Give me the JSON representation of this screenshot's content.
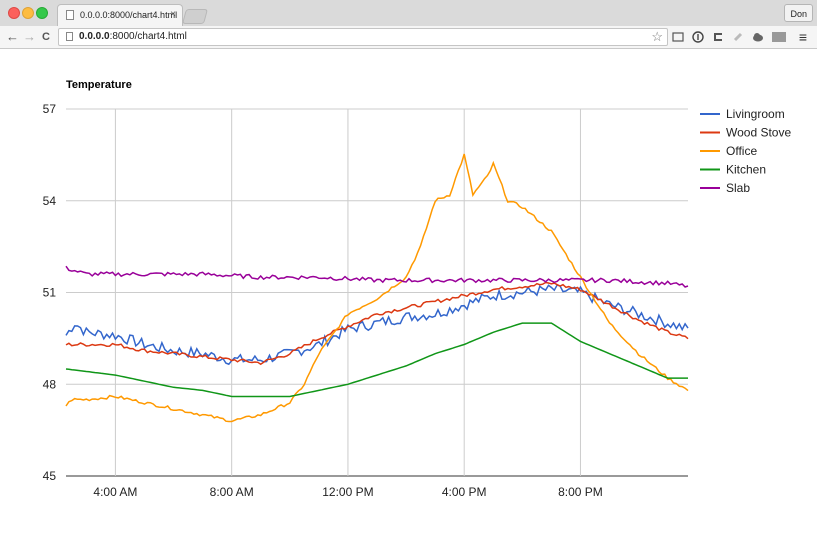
{
  "browser": {
    "tab_title": "0.0.0.0:8000/chart4.html",
    "tab_close": "×",
    "profile_name": "Don",
    "url_host": "0.0.0.0",
    "url_rest": ":8000/chart4.html",
    "back_glyph": "←",
    "forward_glyph": "→",
    "reload_glyph": "C",
    "star_glyph": "☆",
    "menu_glyph": "≡",
    "icons": [
      "page-icon",
      "star-icon",
      "cast-icon",
      "info-icon",
      "reader-icon",
      "extension-icon",
      "cloud-icon",
      "flux-icon",
      "menu-icon"
    ]
  },
  "chart_data": {
    "type": "line",
    "title": "Temperature",
    "xlabel": "",
    "ylabel": "",
    "ylim": [
      45,
      57
    ],
    "yticks": [
      45,
      48,
      51,
      54,
      57
    ],
    "xlim_hours": [
      2.3,
      23.7
    ],
    "xticks": [
      {
        "hour": 4,
        "label": "4:00 AM"
      },
      {
        "hour": 8,
        "label": "8:00 AM"
      },
      {
        "hour": 12,
        "label": "12:00 PM"
      },
      {
        "hour": 16,
        "label": "4:00 PM"
      },
      {
        "hour": 20,
        "label": "8:00 PM"
      }
    ],
    "grid": true,
    "legend_position": "right",
    "series": [
      {
        "name": "Livingroom",
        "color": "#3366cc",
        "noise": 0.18,
        "points": [
          [
            2.3,
            49.6
          ],
          [
            2.6,
            50.0
          ],
          [
            3.0,
            49.7
          ],
          [
            4.0,
            49.6
          ],
          [
            5.0,
            49.3
          ],
          [
            6.0,
            49.1
          ],
          [
            7.0,
            49.0
          ],
          [
            8.0,
            48.8
          ],
          [
            9.0,
            48.8
          ],
          [
            10.0,
            49.0
          ],
          [
            11.0,
            49.3
          ],
          [
            12.0,
            49.8
          ],
          [
            13.0,
            50.0
          ],
          [
            14.0,
            50.2
          ],
          [
            15.0,
            50.3
          ],
          [
            16.0,
            50.6
          ],
          [
            17.0,
            50.9
          ],
          [
            18.0,
            51.0
          ],
          [
            19.0,
            51.1
          ],
          [
            20.0,
            51.0
          ],
          [
            21.0,
            50.6
          ],
          [
            22.0,
            50.3
          ],
          [
            23.0,
            50.0
          ],
          [
            23.7,
            49.8
          ]
        ]
      },
      {
        "name": "Wood Stove",
        "color": "#dc3912",
        "noise": 0.06,
        "points": [
          [
            2.3,
            49.3
          ],
          [
            4.0,
            49.3
          ],
          [
            5.0,
            49.1
          ],
          [
            6.0,
            49.0
          ],
          [
            7.0,
            48.9
          ],
          [
            8.0,
            48.8
          ],
          [
            9.0,
            48.7
          ],
          [
            10.0,
            49.0
          ],
          [
            11.0,
            49.5
          ],
          [
            12.0,
            49.9
          ],
          [
            13.0,
            50.3
          ],
          [
            14.0,
            50.5
          ],
          [
            15.0,
            50.7
          ],
          [
            16.0,
            50.9
          ],
          [
            17.0,
            51.1
          ],
          [
            18.0,
            51.2
          ],
          [
            19.0,
            51.3
          ],
          [
            20.0,
            51.1
          ],
          [
            21.0,
            50.6
          ],
          [
            22.0,
            50.1
          ],
          [
            23.0,
            49.7
          ],
          [
            23.7,
            49.5
          ]
        ]
      },
      {
        "name": "Office",
        "color": "#ff9900",
        "noise": 0.05,
        "points": [
          [
            2.3,
            47.3
          ],
          [
            2.5,
            47.5
          ],
          [
            3.0,
            47.5
          ],
          [
            4.0,
            47.6
          ],
          [
            5.0,
            47.4
          ],
          [
            6.0,
            47.2
          ],
          [
            7.0,
            47.0
          ],
          [
            8.0,
            46.8
          ],
          [
            9.0,
            47.0
          ],
          [
            10.0,
            47.4
          ],
          [
            10.5,
            48.0
          ],
          [
            11.0,
            49.0
          ],
          [
            12.0,
            50.3
          ],
          [
            13.0,
            50.8
          ],
          [
            14.0,
            51.5
          ],
          [
            14.5,
            52.5
          ],
          [
            15.0,
            54.0
          ],
          [
            15.5,
            54.2
          ],
          [
            16.0,
            55.5
          ],
          [
            16.3,
            54.2
          ],
          [
            16.8,
            54.8
          ],
          [
            17.0,
            55.2
          ],
          [
            17.5,
            54.0
          ],
          [
            18.0,
            53.8
          ],
          [
            19.0,
            53.0
          ],
          [
            20.0,
            51.5
          ],
          [
            21.0,
            50.0
          ],
          [
            22.0,
            49.0
          ],
          [
            23.0,
            48.2
          ],
          [
            23.7,
            47.8
          ]
        ]
      },
      {
        "name": "Kitchen",
        "color": "#109618",
        "noise": 0.0,
        "points": [
          [
            2.3,
            48.5
          ],
          [
            4.0,
            48.3
          ],
          [
            5.0,
            48.1
          ],
          [
            6.0,
            47.9
          ],
          [
            7.0,
            47.8
          ],
          [
            8.0,
            47.6
          ],
          [
            9.0,
            47.6
          ],
          [
            10.0,
            47.6
          ],
          [
            11.0,
            47.8
          ],
          [
            12.0,
            48.0
          ],
          [
            13.0,
            48.3
          ],
          [
            14.0,
            48.6
          ],
          [
            15.0,
            49.0
          ],
          [
            16.0,
            49.3
          ],
          [
            17.0,
            49.7
          ],
          [
            18.0,
            50.0
          ],
          [
            19.0,
            50.0
          ],
          [
            20.0,
            49.4
          ],
          [
            21.0,
            49.0
          ],
          [
            22.0,
            48.6
          ],
          [
            23.0,
            48.2
          ],
          [
            23.7,
            48.2
          ]
        ]
      },
      {
        "name": "Slab",
        "color": "#990099",
        "noise": 0.07,
        "points": [
          [
            2.3,
            51.8
          ],
          [
            3.0,
            51.6
          ],
          [
            5.0,
            51.6
          ],
          [
            7.0,
            51.6
          ],
          [
            9.0,
            51.5
          ],
          [
            11.0,
            51.5
          ],
          [
            13.0,
            51.4
          ],
          [
            15.0,
            51.4
          ],
          [
            17.0,
            51.4
          ],
          [
            19.0,
            51.4
          ],
          [
            21.0,
            51.4
          ],
          [
            23.0,
            51.3
          ],
          [
            23.7,
            51.2
          ]
        ]
      }
    ]
  }
}
